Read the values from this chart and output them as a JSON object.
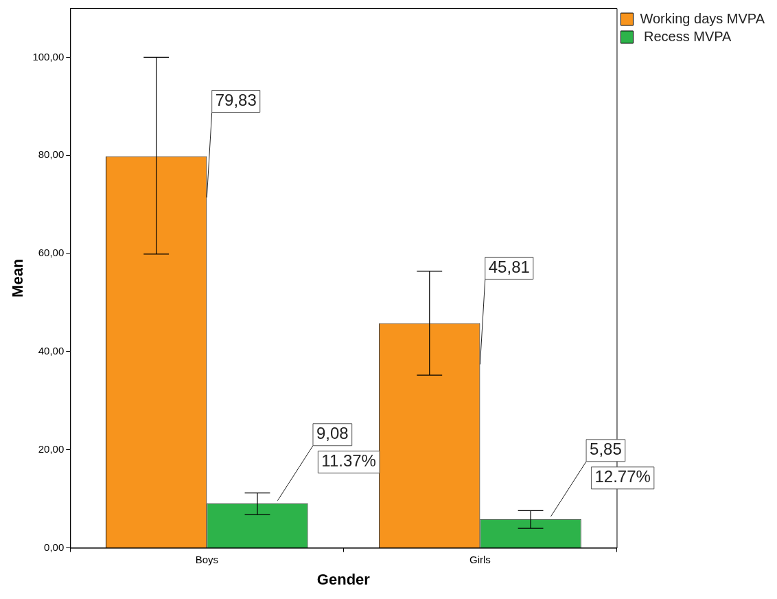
{
  "chart_data": {
    "type": "bar",
    "xlabel": "Gender",
    "ylabel": "Mean",
    "categories": [
      "Boys",
      "Girls"
    ],
    "series": [
      {
        "name": "Working days MVPA",
        "color": "#f7941d",
        "values": [
          79.83,
          45.81
        ],
        "errors": [
          [
            59.9,
            100.0
          ],
          [
            35.2,
            56.4
          ]
        ],
        "value_labels": [
          "79,83",
          "45,81"
        ]
      },
      {
        "name": " Recess MVPA",
        "color": "#2db34a",
        "values": [
          9.08,
          5.85
        ],
        "errors": [
          [
            6.8,
            11.2
          ],
          [
            4.0,
            7.6
          ]
        ],
        "value_labels": [
          "9,08",
          "5,85"
        ]
      }
    ],
    "ylim": [
      0,
      110
    ],
    "yticks": [
      {
        "value": 0,
        "label": "0,00"
      },
      {
        "value": 20,
        "label": "20,00"
      },
      {
        "value": 40,
        "label": "40,00"
      },
      {
        "value": 60,
        "label": "60,00"
      },
      {
        "value": 80,
        "label": "80,00"
      },
      {
        "value": 100,
        "label": "100,00"
      }
    ],
    "annotations": [
      "11.37%",
      "12.77%"
    ],
    "grid": false,
    "legend": "top right"
  }
}
